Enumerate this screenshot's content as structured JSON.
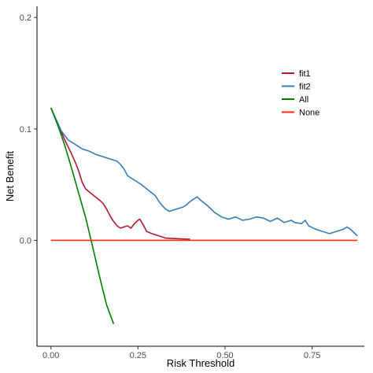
{
  "chart_data": {
    "type": "line",
    "xlabel": "Risk Threshold",
    "ylabel": "Net Benefit",
    "xlim": [
      -0.04,
      0.9
    ],
    "ylim": [
      -0.095,
      0.21
    ],
    "x_ticks": [
      {
        "value": 0.0,
        "label": "0.00"
      },
      {
        "value": 0.25,
        "label": "0.25"
      },
      {
        "value": 0.5,
        "label": "0.50"
      },
      {
        "value": 0.75,
        "label": "0.75"
      }
    ],
    "y_ticks": [
      {
        "value": 0.0,
        "label": "0.0"
      },
      {
        "value": 0.1,
        "label": "0.1"
      },
      {
        "value": 0.2,
        "label": "0.2"
      }
    ],
    "grid": false,
    "legend_position": "right",
    "series": [
      {
        "name": "fit1",
        "color": "#b2182b",
        "points": [
          [
            0.0,
            0.119
          ],
          [
            0.02,
            0.104
          ],
          [
            0.04,
            0.09
          ],
          [
            0.06,
            0.077
          ],
          [
            0.07,
            0.07
          ],
          [
            0.08,
            0.062
          ],
          [
            0.09,
            0.052
          ],
          [
            0.1,
            0.046
          ],
          [
            0.12,
            0.041
          ],
          [
            0.14,
            0.036
          ],
          [
            0.15,
            0.033
          ],
          [
            0.16,
            0.028
          ],
          [
            0.17,
            0.022
          ],
          [
            0.18,
            0.017
          ],
          [
            0.19,
            0.013
          ],
          [
            0.2,
            0.011
          ],
          [
            0.21,
            0.012
          ],
          [
            0.22,
            0.013
          ],
          [
            0.23,
            0.011
          ],
          [
            0.24,
            0.015
          ],
          [
            0.25,
            0.018
          ],
          [
            0.255,
            0.019
          ],
          [
            0.265,
            0.014
          ],
          [
            0.275,
            0.008
          ],
          [
            0.29,
            0.006
          ],
          [
            0.31,
            0.004
          ],
          [
            0.33,
            0.002
          ],
          [
            0.36,
            0.0015
          ],
          [
            0.4,
            0.001
          ]
        ]
      },
      {
        "name": "fit2",
        "color": "#377eb8",
        "points": [
          [
            0.0,
            0.119
          ],
          [
            0.01,
            0.112
          ],
          [
            0.02,
            0.105
          ],
          [
            0.03,
            0.098
          ],
          [
            0.05,
            0.09
          ],
          [
            0.07,
            0.086
          ],
          [
            0.09,
            0.082
          ],
          [
            0.11,
            0.08
          ],
          [
            0.13,
            0.077
          ],
          [
            0.15,
            0.075
          ],
          [
            0.17,
            0.073
          ],
          [
            0.19,
            0.071
          ],
          [
            0.2,
            0.068
          ],
          [
            0.21,
            0.064
          ],
          [
            0.22,
            0.058
          ],
          [
            0.24,
            0.054
          ],
          [
            0.26,
            0.05
          ],
          [
            0.28,
            0.045
          ],
          [
            0.3,
            0.04
          ],
          [
            0.31,
            0.035
          ],
          [
            0.32,
            0.031
          ],
          [
            0.33,
            0.028
          ],
          [
            0.34,
            0.026
          ],
          [
            0.36,
            0.028
          ],
          [
            0.38,
            0.03
          ],
          [
            0.39,
            0.032
          ],
          [
            0.4,
            0.035
          ],
          [
            0.42,
            0.039
          ],
          [
            0.43,
            0.036
          ],
          [
            0.45,
            0.031
          ],
          [
            0.47,
            0.025
          ],
          [
            0.49,
            0.021
          ],
          [
            0.51,
            0.019
          ],
          [
            0.53,
            0.021
          ],
          [
            0.55,
            0.018
          ],
          [
            0.57,
            0.019
          ],
          [
            0.59,
            0.021
          ],
          [
            0.61,
            0.02
          ],
          [
            0.63,
            0.017
          ],
          [
            0.65,
            0.02
          ],
          [
            0.67,
            0.016
          ],
          [
            0.69,
            0.018
          ],
          [
            0.7,
            0.016
          ],
          [
            0.72,
            0.015
          ],
          [
            0.73,
            0.018
          ],
          [
            0.74,
            0.013
          ],
          [
            0.76,
            0.01
          ],
          [
            0.78,
            0.008
          ],
          [
            0.8,
            0.006
          ],
          [
            0.82,
            0.008
          ],
          [
            0.84,
            0.01
          ],
          [
            0.85,
            0.012
          ],
          [
            0.86,
            0.01
          ],
          [
            0.87,
            0.007
          ],
          [
            0.88,
            0.004
          ]
        ]
      },
      {
        "name": "All",
        "color": "#008000",
        "points": [
          [
            0.0,
            0.119
          ],
          [
            0.02,
            0.103
          ],
          [
            0.04,
            0.085
          ],
          [
            0.06,
            0.064
          ],
          [
            0.08,
            0.042
          ],
          [
            0.1,
            0.02
          ],
          [
            0.12,
            -0.006
          ],
          [
            0.14,
            -0.033
          ],
          [
            0.16,
            -0.058
          ],
          [
            0.18,
            -0.075
          ]
        ]
      },
      {
        "name": "None",
        "color": "#ff2b1a",
        "points": [
          [
            0.0,
            0.0
          ],
          [
            0.88,
            0.0
          ]
        ]
      }
    ]
  }
}
